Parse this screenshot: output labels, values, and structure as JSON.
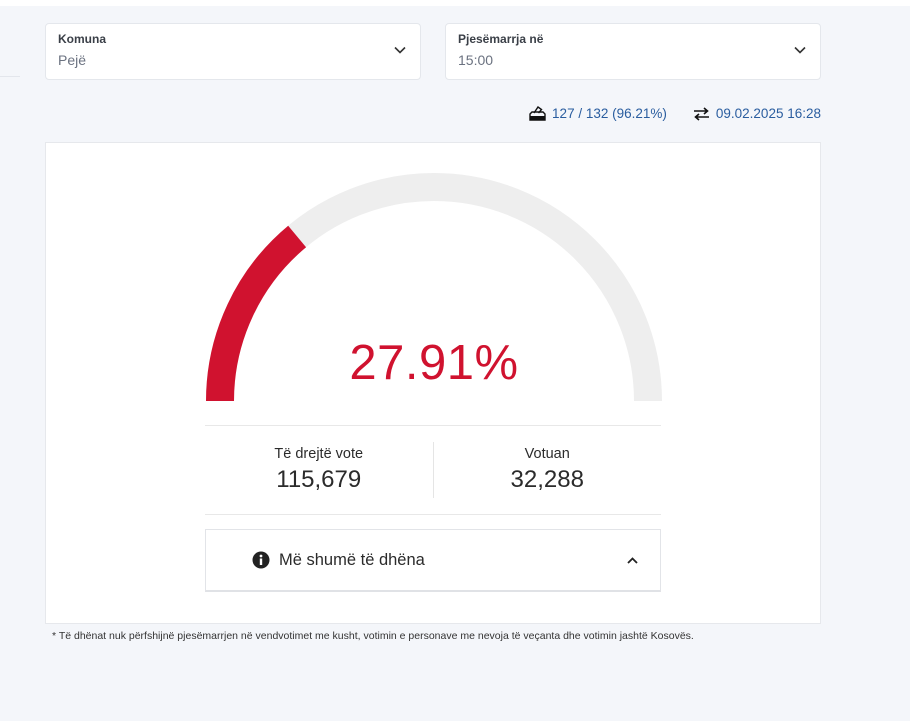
{
  "filters": {
    "municipality": {
      "label": "Komuna",
      "value": "Pejë"
    },
    "turnout_at": {
      "label": "Pjesëmarrja në",
      "value": "15:00"
    }
  },
  "meta": {
    "stations": "127 / 132 (96.21%)",
    "updated": "09.02.2025 16:28",
    "icons": {
      "stations": "ballot-box-icon",
      "updated": "sync-arrows-icon"
    }
  },
  "gauge": {
    "percent_text": "27.91%",
    "value": 27.91,
    "colors": {
      "fill": "#d0122f",
      "track": "#eeeeee"
    }
  },
  "stats": {
    "eligible": {
      "label": "Të drejtë vote",
      "value": "115,679"
    },
    "voted": {
      "label": "Votuan",
      "value": "32,288"
    }
  },
  "more_info": {
    "label": "Më shumë të dhëna"
  },
  "footnote": "* Të dhënat nuk përfshijnë pjesëmarrjen në vendvotimet me kusht, votimin e personave me nevoja të veçanta dhe votimin jashtë Kosovës."
}
